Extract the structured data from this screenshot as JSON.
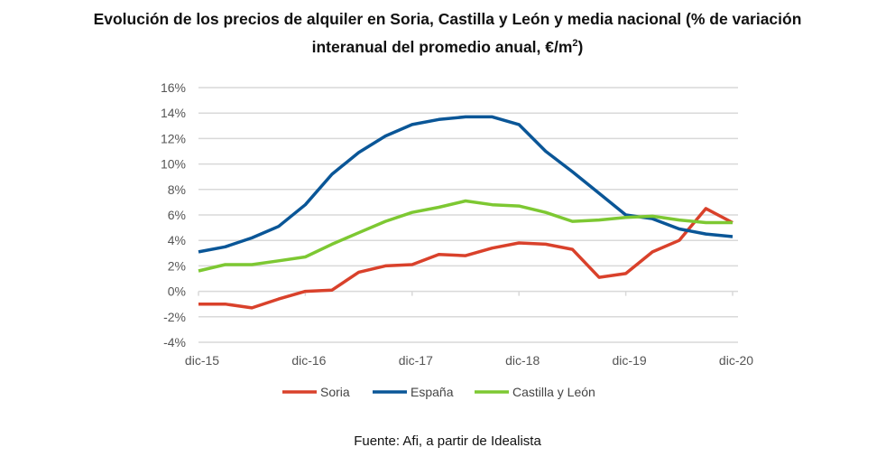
{
  "chart_data": {
    "type": "line",
    "title_line1": "Evolución de los precios de alquiler en Soria, Castilla y León y media nacional (% de variación",
    "title_line2": "interanual del promedio anual, €/m",
    "title_sup": "2",
    "title_end": ")",
    "source": "Fuente: Afi, a partir de Idealista",
    "x_tick_labels": [
      "dic-15",
      "dic-16",
      "dic-17",
      "dic-18",
      "dic-19",
      "dic-20"
    ],
    "y_tick_labels": [
      "16%",
      "14%",
      "12%",
      "10%",
      "8%",
      "6%",
      "4%",
      "2%",
      "0%",
      "-2%",
      "-4%"
    ],
    "ylim": [
      -4,
      16
    ],
    "grid": true,
    "legend_position": "bottom",
    "series": [
      {
        "name": "Soria",
        "color": "#d9412b",
        "values": [
          -1.0,
          -1.0,
          -1.3,
          -0.6,
          0.0,
          0.1,
          1.5,
          2.0,
          2.1,
          2.9,
          2.8,
          3.4,
          3.8,
          3.7,
          3.3,
          1.1,
          1.4,
          3.1,
          4.0,
          6.5,
          5.4
        ]
      },
      {
        "name": "España",
        "color": "#0a5697",
        "values": [
          3.1,
          3.5,
          4.2,
          5.1,
          6.8,
          9.2,
          10.9,
          12.2,
          13.1,
          13.5,
          13.7,
          13.7,
          13.1,
          11.0,
          9.4,
          7.7,
          6.0,
          5.7,
          4.9,
          4.5,
          4.3
        ]
      },
      {
        "name": "Castilla y León",
        "color": "#7dc832",
        "values": [
          1.6,
          2.1,
          2.1,
          2.4,
          2.7,
          3.7,
          4.6,
          5.5,
          6.2,
          6.6,
          7.1,
          6.8,
          6.7,
          6.2,
          5.5,
          5.6,
          5.8,
          5.9,
          5.6,
          5.4,
          5.4
        ]
      }
    ]
  }
}
